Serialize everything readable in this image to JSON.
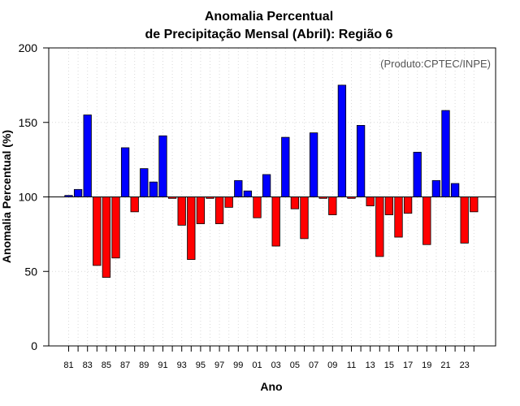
{
  "chart_data": {
    "type": "bar",
    "title_line1": "Anomalia Percentual",
    "title_line2": "de Precipitação Mensal (Abril): Região 6",
    "credit": "(Produto:CPTEC/INPE)",
    "xlabel": "Ano",
    "ylabel": "Anomalia Percentual (%)",
    "ylim": [
      0,
      200
    ],
    "yticks": [
      "0",
      "50",
      "100",
      "150",
      "200"
    ],
    "baseline": 100,
    "grid": true,
    "colors": {
      "above": "#0000ff",
      "below": "#ff0000",
      "grid": "#d9d9d9",
      "axis": "#000000"
    },
    "categories": [
      "81",
      "82",
      "83",
      "84",
      "85",
      "86",
      "87",
      "88",
      "89",
      "90",
      "91",
      "92",
      "93",
      "94",
      "95",
      "96",
      "97",
      "98",
      "99",
      "00",
      "01",
      "02",
      "03",
      "04",
      "05",
      "06",
      "07",
      "08",
      "09",
      "10",
      "11",
      "12",
      "13",
      "14",
      "15",
      "16",
      "17",
      "18",
      "19",
      "20",
      "21",
      "22",
      "23",
      "24"
    ],
    "xtick_labels": [
      "81",
      "83",
      "85",
      "87",
      "89",
      "91",
      "93",
      "95",
      "97",
      "99",
      "01",
      "03",
      "05",
      "07",
      "09",
      "11",
      "13",
      "15",
      "17",
      "19",
      "21",
      "23"
    ],
    "values": [
      101,
      105,
      155,
      54,
      46,
      59,
      133,
      90,
      119,
      110,
      141,
      99,
      81,
      58,
      82,
      99,
      82,
      93,
      111,
      104,
      86,
      115,
      67,
      140,
      92,
      72,
      143,
      99,
      88,
      175,
      99,
      148,
      94,
      60,
      88,
      73,
      89,
      130,
      68,
      111,
      158,
      109,
      69,
      90
    ]
  }
}
